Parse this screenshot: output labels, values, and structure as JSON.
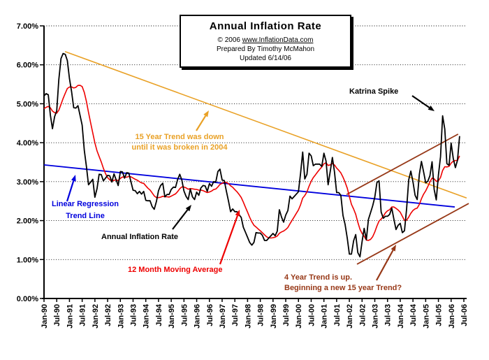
{
  "title_box": {
    "title": "Annual  Inflation Rate",
    "copyright_prefix": "© 2006 ",
    "site": "www.InflationData.com",
    "prepared": "Prepared By Timothy McMahon",
    "updated": "Updated 6/14/06"
  },
  "colors": {
    "black": "#000000",
    "red": "#ee0000",
    "blue": "#0000dd",
    "orange": "#e9a126",
    "brown": "#973817"
  },
  "chart_data": {
    "type": "line",
    "title": "Annual Inflation Rate",
    "ylabel": "",
    "xlabel": "",
    "ylim": [
      0,
      7
    ],
    "grid": "horizontal-dotted",
    "y_tick_labels": [
      "0.00%",
      "1.00%",
      "2.00%",
      "3.00%",
      "4.00%",
      "5.00%",
      "6.00%",
      "7.00%"
    ],
    "x_tick_labels": [
      "Jan-90",
      "Jul-90",
      "Jan-91",
      "Jul-91",
      "Jan-92",
      "Jul-92",
      "Jan-93",
      "Jul-93",
      "Jan-94",
      "Jul-94",
      "Jan-95",
      "Jul-95",
      "Jan-96",
      "Jul-96",
      "Jan-97",
      "Jul-97",
      "Jan-98",
      "Jul-98",
      "Jan-99",
      "Jul-99",
      "Jan-00",
      "Jul-00",
      "Jan-01",
      "Jul-01",
      "Jan-02",
      "Jul-02",
      "Jan-03",
      "Jul-03",
      "Jan-04",
      "Jul-04",
      "Jan-05",
      "Jul-05",
      "Jan-06",
      "Jul-06"
    ],
    "x_tick_month_step": 6,
    "series": [
      {
        "name": "Annual Inflation Rate",
        "color": "#000000",
        "start": "Jan-1990",
        "end": "May-2006",
        "monthly_values": [
          5.2,
          5.26,
          5.23,
          4.71,
          4.36,
          4.67,
          4.82,
          5.62,
          6.16,
          6.29,
          6.27,
          6.11,
          5.65,
          5.31,
          4.9,
          4.89,
          4.95,
          4.7,
          4.45,
          3.8,
          3.39,
          2.92,
          2.99,
          3.06,
          2.6,
          2.82,
          3.19,
          3.18,
          3.02,
          3.09,
          3.16,
          3.15,
          2.99,
          3.2,
          3.05,
          2.9,
          3.26,
          3.25,
          3.09,
          3.23,
          3.22,
          3.0,
          2.78,
          2.77,
          2.69,
          2.75,
          2.68,
          2.75,
          2.52,
          2.51,
          2.51,
          2.36,
          2.29,
          2.49,
          2.77,
          2.9,
          2.96,
          2.61,
          2.67,
          2.67,
          2.8,
          2.86,
          2.85,
          3.05,
          3.19,
          3.04,
          2.76,
          2.62,
          2.54,
          2.81,
          2.61,
          2.54,
          2.73,
          2.65,
          2.84,
          2.9,
          2.89,
          2.75,
          2.95,
          2.88,
          3.0,
          2.99,
          3.26,
          3.32,
          3.04,
          3.03,
          2.76,
          2.5,
          2.23,
          2.3,
          2.23,
          2.23,
          2.15,
          2.08,
          1.83,
          1.7,
          1.57,
          1.44,
          1.37,
          1.44,
          1.69,
          1.68,
          1.68,
          1.62,
          1.49,
          1.49,
          1.55,
          1.61,
          1.67,
          1.61,
          1.73,
          2.28,
          2.09,
          1.96,
          2.14,
          2.26,
          2.63,
          2.56,
          2.62,
          2.68,
          2.74,
          3.22,
          3.76,
          3.07,
          3.19,
          3.73,
          3.66,
          3.41,
          3.45,
          3.45,
          3.45,
          3.39,
          3.73,
          3.53,
          2.92,
          3.27,
          3.62,
          3.25,
          2.72,
          2.72,
          2.65,
          2.13,
          1.9,
          1.55,
          1.14,
          1.14,
          1.48,
          1.64,
          1.18,
          1.07,
          1.46,
          1.8,
          1.51,
          2.03,
          2.2,
          2.38,
          2.6,
          2.98,
          3.02,
          2.22,
          2.06,
          2.11,
          2.11,
          2.16,
          2.32,
          2.04,
          1.77,
          1.88,
          1.93,
          1.69,
          1.74,
          2.29,
          3.05,
          3.27,
          2.99,
          2.65,
          2.54,
          3.19,
          3.52,
          3.26,
          2.97,
          3.01,
          3.15,
          3.51,
          2.8,
          2.53,
          3.17,
          3.64,
          4.69,
          4.35,
          3.46,
          3.42,
          3.99,
          3.6,
          3.36,
          3.55,
          4.17
        ]
      },
      {
        "name": "12 Month Moving Average",
        "color": "#ee0000",
        "derived": "trailing 12-month mean of Annual Inflation Rate",
        "seed_1989_values": [
          4.67,
          4.83,
          4.98,
          5.12,
          5.36,
          5.17,
          4.98,
          4.71,
          4.34,
          4.49,
          4.66,
          4.64
        ]
      }
    ],
    "trend_lines": [
      {
        "name": "15 Year Trend (down until broken in 2004)",
        "color": "#e9a126",
        "width": 1.6,
        "from": {
          "month": 9.9,
          "value": 6.34
        },
        "to": {
          "month": 199.3,
          "value": 2.58
        }
      },
      {
        "name": "Linear Regression Trend Line",
        "color": "#0000dd",
        "width": 1.8,
        "from": {
          "month": 0,
          "value": 3.43
        },
        "to": {
          "month": 193.7,
          "value": 2.35
        }
      },
      {
        "name": "4 Year Trend channel upper",
        "color": "#973817",
        "width": 1.8,
        "from": {
          "month": 142.7,
          "value": 2.67
        },
        "to": {
          "month": 195.3,
          "value": 4.22
        }
      },
      {
        "name": "4 Year Trend channel lower",
        "color": "#973817",
        "width": 1.8,
        "from": {
          "month": 147.6,
          "value": 0.88
        },
        "to": {
          "month": 200.3,
          "value": 2.44
        }
      }
    ],
    "arrows": [
      {
        "name": "katrina-arrow",
        "color": "#000000",
        "from": [
          590,
          137
        ],
        "to": [
          622,
          159
        ]
      },
      {
        "name": "fifteen-year-arrow",
        "color": "#e9a126",
        "from": [
          281,
          187
        ],
        "to": [
          299,
          158
        ]
      },
      {
        "name": "linear-regression-arrow",
        "color": "#0000dd",
        "from": [
          96,
          288
        ],
        "to": [
          108,
          250
        ]
      },
      {
        "name": "annual-rate-arrow",
        "color": "#000000",
        "from": [
          247,
          328
        ],
        "to": [
          274,
          293
        ]
      },
      {
        "name": "moving-average-arrow",
        "color": "#ee0000",
        "from": [
          315,
          378
        ],
        "to": [
          343,
          300
        ]
      },
      {
        "name": "four-year-arrow",
        "color": "#973817",
        "from": [
          539,
          401
        ],
        "to": [
          567,
          350
        ]
      }
    ],
    "annotations": {
      "katrina": {
        "text": "Katrina Spike",
        "color": "#000000"
      },
      "fifteen_year": {
        "line1": "15 Year Trend was down",
        "line2": "until it was broken in 2004",
        "color": "#e9a126"
      },
      "linear_regression": {
        "line1": "Linear Regression",
        "line2": "Trend Line",
        "color": "#0000dd"
      },
      "annual_rate": {
        "text": "Annual Inflation Rate",
        "color": "#000000"
      },
      "moving_average": {
        "text": "12 Month Moving Average",
        "color": "#ee0000"
      },
      "four_year": {
        "line1": "4 Year Trend is up.",
        "line2": "Beginning a new 15 year Trend?",
        "color": "#973817"
      }
    },
    "legend_position": "none"
  }
}
